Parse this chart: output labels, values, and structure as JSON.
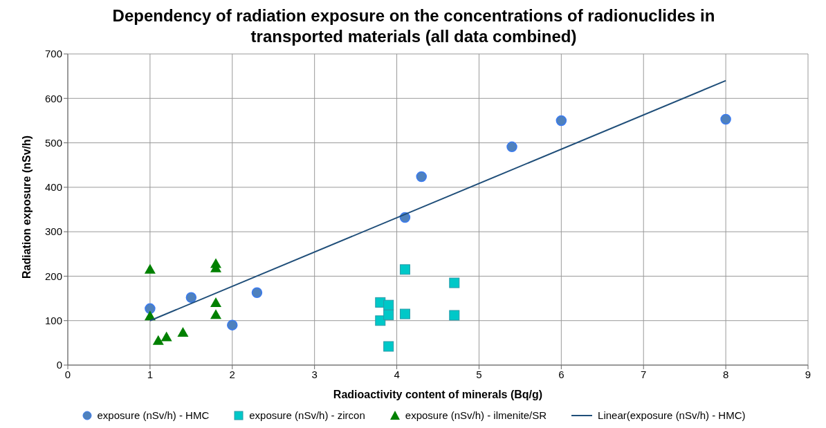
{
  "chart_data": {
    "type": "scatter",
    "title": "Dependency of radiation exposure on the concentrations of radionuclides in transported materials (all data combined)",
    "xlabel": "Radioactivity content of minerals (Bq/g)",
    "ylabel": "Radiation exposure (nSv/h)",
    "xlim": [
      0,
      9
    ],
    "xticks": [
      0,
      1,
      2,
      3,
      4,
      5,
      6,
      7,
      8,
      9
    ],
    "ylim": [
      0,
      700
    ],
    "yticks": [
      0,
      100,
      200,
      300,
      400,
      500,
      600,
      700
    ],
    "grid": true,
    "legend": "bottom",
    "series": [
      {
        "name": "exposure (nSv/h) - HMC",
        "color": "#4f81bd",
        "marker": "circle",
        "x": [
          1,
          1.5,
          2,
          2.3,
          4.1,
          4.3,
          5.4,
          6,
          8
        ],
        "values": [
          127,
          152,
          90,
          163,
          332,
          424,
          491,
          550,
          553
        ]
      },
      {
        "name": "exposure (nSv/h) - zircon",
        "color": "#00c8c8",
        "marker": "square",
        "x": [
          3.8,
          3.8,
          3.9,
          3.9,
          3.9,
          4.1,
          4.1,
          4.7,
          4.7
        ],
        "values": [
          141,
          100,
          135,
          113,
          42,
          215,
          115,
          185,
          112
        ]
      },
      {
        "name": "exposure (nSv/h) - ilmenite/SR",
        "color": "#008000",
        "marker": "triangle",
        "x": [
          1,
          1,
          1.1,
          1.2,
          1.4,
          1.8,
          1.8,
          1.8,
          1.8
        ],
        "values": [
          215,
          110,
          55,
          63,
          73,
          228,
          218,
          140,
          113
        ]
      },
      {
        "name": "Linear(exposure (nSv/h) - HMC)",
        "color": "#1f4e79",
        "type": "line",
        "marker": "none",
        "x": [
          1,
          8
        ],
        "values": [
          100,
          640
        ]
      }
    ]
  }
}
